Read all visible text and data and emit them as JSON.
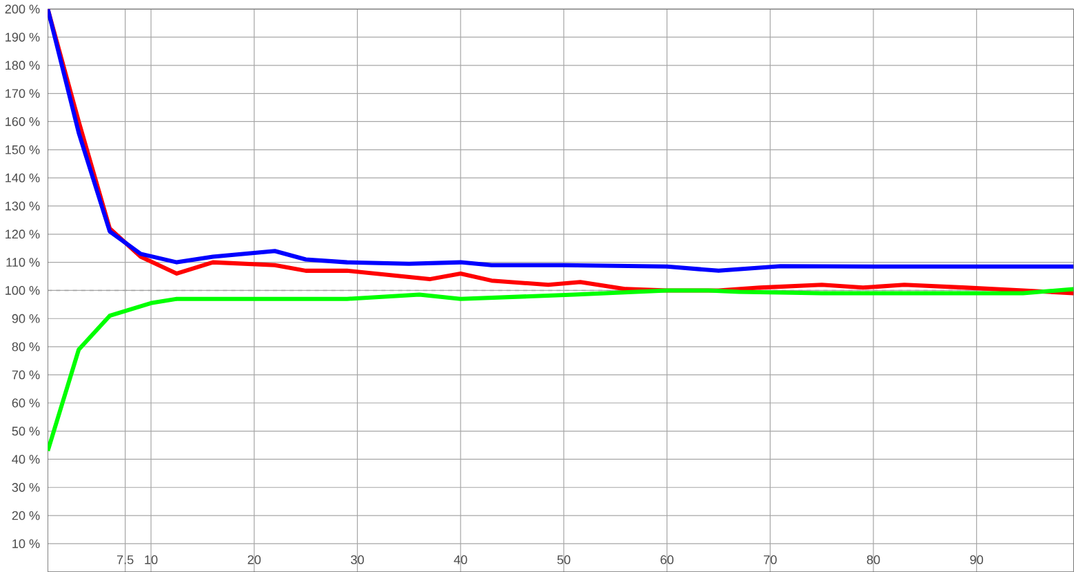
{
  "chart_data": {
    "type": "line",
    "xlim": [
      0,
      99.4
    ],
    "ylim": [
      0,
      200
    ],
    "xticks": [
      7.5,
      10,
      20,
      30,
      40,
      50,
      60,
      70,
      80,
      90
    ],
    "yticks": [
      {
        "value": 10,
        "label": "10 %"
      },
      {
        "value": 20,
        "label": "20 %"
      },
      {
        "value": 30,
        "label": "30 %"
      },
      {
        "value": 40,
        "label": "40 %"
      },
      {
        "value": 50,
        "label": "50 %"
      },
      {
        "value": 60,
        "label": "60 %"
      },
      {
        "value": 70,
        "label": "70 %"
      },
      {
        "value": 80,
        "label": "80 %"
      },
      {
        "value": 90,
        "label": "90 %"
      },
      {
        "value": 100,
        "label": "100 %"
      },
      {
        "value": 110,
        "label": "110 %"
      },
      {
        "value": 120,
        "label": "120 %"
      },
      {
        "value": 130,
        "label": "130 %"
      },
      {
        "value": 140,
        "label": "140 %"
      },
      {
        "value": 150,
        "label": "150 %"
      },
      {
        "value": 160,
        "label": "160 %"
      },
      {
        "value": 170,
        "label": "170 %"
      },
      {
        "value": 180,
        "label": "180 %"
      },
      {
        "value": 190,
        "label": "190 %"
      },
      {
        "value": 200,
        "label": "200 %"
      }
    ],
    "grid": true,
    "marker": "none",
    "line_style": "solid",
    "ref_lines": [
      {
        "axis": "y",
        "value": 100,
        "color": "#a0a0a0",
        "line_style": "dashed"
      }
    ],
    "series": [
      {
        "color": "#ff0000",
        "x": [
          0,
          3,
          6,
          9,
          12.5,
          16,
          22,
          25,
          29,
          37,
          40,
          43,
          48.5,
          51.6,
          56,
          60,
          65,
          69,
          75,
          79,
          83,
          89,
          94.5,
          99.4
        ],
        "values": [
          200,
          160,
          122,
          112,
          106,
          110,
          109,
          107,
          107,
          104,
          106,
          103.5,
          102,
          103,
          100.5,
          100,
          100,
          101,
          102,
          101,
          102,
          101,
          100,
          99
        ]
      },
      {
        "color": "#00ff00",
        "x": [
          0,
          3,
          6,
          10,
          12.5,
          20,
          25,
          29,
          36,
          40,
          51,
          60,
          64,
          67,
          75,
          85,
          94.5,
          99.4
        ],
        "values": [
          43,
          79,
          91,
          95.5,
          97,
          97,
          97,
          97,
          98.5,
          97,
          98.5,
          100,
          100,
          99.5,
          99,
          99,
          99,
          100.5
        ]
      },
      {
        "color": "#0000ff",
        "x": [
          0,
          3,
          6,
          9,
          12.5,
          16,
          22,
          25,
          29,
          35,
          40,
          43,
          50,
          60,
          65,
          71,
          80,
          90,
          99.4
        ],
        "values": [
          200,
          156,
          121,
          113,
          110,
          112,
          114,
          111,
          110,
          109.5,
          110,
          109,
          109,
          108.5,
          107,
          108.6,
          108.5,
          108.5,
          108.5
        ]
      }
    ]
  }
}
